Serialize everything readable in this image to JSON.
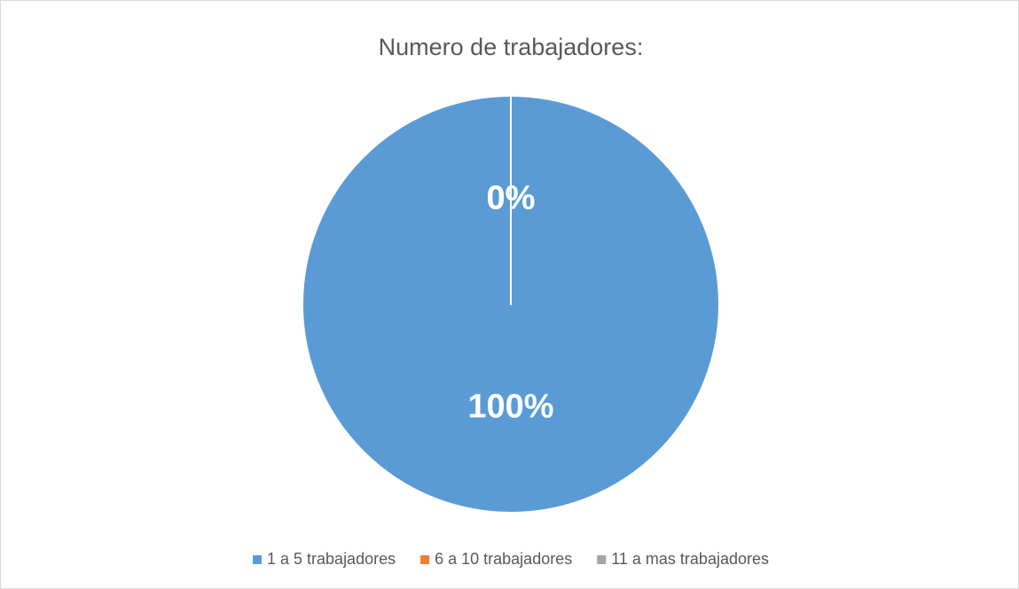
{
  "chart_data": {
    "type": "pie",
    "title": "Numero de trabajadores:",
    "categories": [
      "1 a 5 trabajadores",
      "6 a 10 trabajadores",
      "11 a mas trabajadores"
    ],
    "values": [
      100,
      0,
      0
    ],
    "value_labels": [
      "100%",
      "0%",
      "0%"
    ],
    "colors": [
      "#5b9bd5",
      "#ed7d31",
      "#a5a5a5"
    ],
    "legend": "bottom"
  }
}
